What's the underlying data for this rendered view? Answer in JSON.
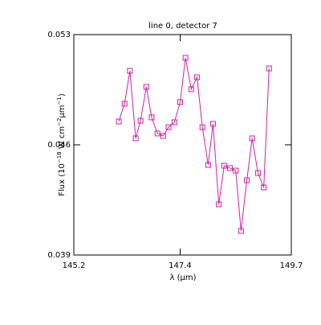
{
  "chart_data": {
    "type": "line",
    "title": "line 0, detector 7",
    "xlabel": "λ (μm)",
    "ylabel": [
      "Flux (10",
      "−18",
      " W cm",
      "−2",
      "μm",
      "−1",
      ")"
    ],
    "x": [
      146.13,
      146.25,
      146.36,
      146.48,
      146.58,
      146.7,
      146.81,
      146.93,
      147.05,
      147.16,
      147.28,
      147.4,
      147.51,
      147.63,
      147.75,
      147.86,
      147.98,
      148.08,
      148.2,
      148.31,
      148.43,
      148.55,
      148.66,
      148.78,
      148.89,
      149.01,
      149.13,
      149.24
    ],
    "series": [
      {
        "color": "#cc22aa",
        "values": [
          0.04748,
          0.04861,
          0.0507,
          0.04641,
          0.04753,
          0.04968,
          0.04774,
          0.04672,
          0.04656,
          0.04712,
          0.04743,
          0.04871,
          0.05152,
          0.04953,
          0.05029,
          0.04712,
          0.04472,
          0.04733,
          0.04222,
          0.04467,
          0.04452,
          0.04436,
          0.04053,
          0.04375,
          0.04641,
          0.04421,
          0.04329,
          0.05085
        ]
      }
    ],
    "xlim": [
      145.2,
      149.7
    ],
    "ylim": [
      0.039,
      0.053
    ],
    "xticks": [
      145.2,
      147.4,
      149.7
    ],
    "yticks": [
      0.039,
      0.046,
      0.053
    ]
  }
}
